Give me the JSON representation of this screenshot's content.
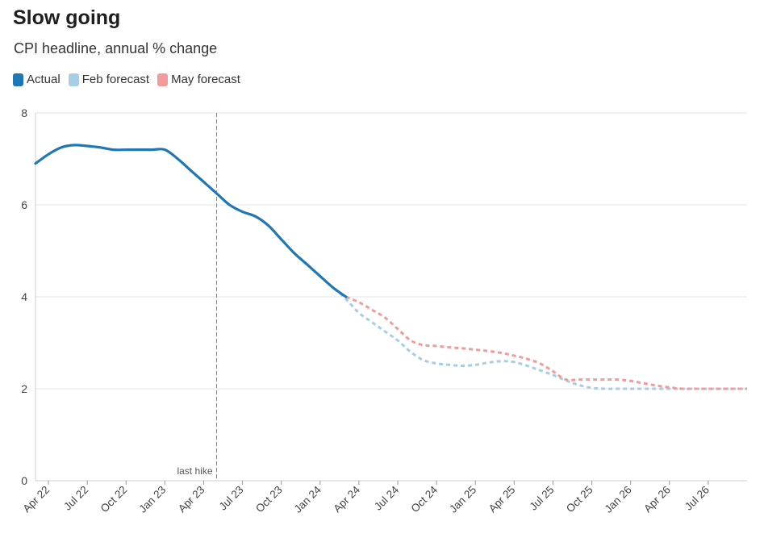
{
  "chart_data": {
    "type": "line",
    "title": "Slow going",
    "subtitle": "CPI headline, annual % change",
    "xlabel": "",
    "ylabel": "",
    "ylim": [
      0,
      8
    ],
    "yticks": [
      0,
      2,
      4,
      6,
      8
    ],
    "grid": true,
    "legend_position": "top-left",
    "x_range": [
      "2022-03",
      "2026-10"
    ],
    "x_ticks": [
      {
        "label": "Apr 22",
        "x": "2022-04"
      },
      {
        "label": "Jul 22",
        "x": "2022-07"
      },
      {
        "label": "Oct 22",
        "x": "2022-10"
      },
      {
        "label": "Jan 23",
        "x": "2023-01"
      },
      {
        "label": "Apr 23",
        "x": "2023-04"
      },
      {
        "label": "Jul 23",
        "x": "2023-07"
      },
      {
        "label": "Oct 23",
        "x": "2023-10"
      },
      {
        "label": "Jan 24",
        "x": "2024-01"
      },
      {
        "label": "Apr 24",
        "x": "2024-04"
      },
      {
        "label": "Jul 24",
        "x": "2024-07"
      },
      {
        "label": "Oct 24",
        "x": "2024-10"
      },
      {
        "label": "Jan 25",
        "x": "2025-01"
      },
      {
        "label": "Apr 25",
        "x": "2025-04"
      },
      {
        "label": "Jul 25",
        "x": "2025-07"
      },
      {
        "label": "Oct 25",
        "x": "2025-10"
      },
      {
        "label": "Jan 26",
        "x": "2026-01"
      },
      {
        "label": "Apr 26",
        "x": "2026-04"
      },
      {
        "label": "Jul 26",
        "x": "2026-07"
      }
    ],
    "annotations": [
      {
        "label": "last hike",
        "x": "2023-05"
      }
    ],
    "series": [
      {
        "name": "Actual",
        "color": "#1f77b4",
        "dashed": false,
        "points": [
          [
            "2022-03",
            6.9
          ],
          [
            "2022-04",
            7.1
          ],
          [
            "2022-05",
            7.25
          ],
          [
            "2022-06",
            7.3
          ],
          [
            "2022-07",
            7.28
          ],
          [
            "2022-08",
            7.25
          ],
          [
            "2022-09",
            7.2
          ],
          [
            "2022-10",
            7.2
          ],
          [
            "2022-11",
            7.2
          ],
          [
            "2022-12",
            7.2
          ],
          [
            "2023-01",
            7.2
          ],
          [
            "2023-02",
            7.0
          ],
          [
            "2023-03",
            6.75
          ],
          [
            "2023-04",
            6.5
          ],
          [
            "2023-05",
            6.25
          ],
          [
            "2023-06",
            6.0
          ],
          [
            "2023-07",
            5.85
          ],
          [
            "2023-08",
            5.75
          ],
          [
            "2023-09",
            5.55
          ],
          [
            "2023-10",
            5.25
          ],
          [
            "2023-11",
            4.95
          ],
          [
            "2023-12",
            4.7
          ],
          [
            "2024-01",
            4.45
          ],
          [
            "2024-02",
            4.2
          ],
          [
            "2024-03",
            4.0
          ]
        ]
      },
      {
        "name": "Feb forecast",
        "color": "#a6cfe5",
        "dashed": true,
        "points": [
          [
            "2023-12",
            4.7
          ],
          [
            "2024-01",
            4.45
          ],
          [
            "2024-02",
            4.2
          ],
          [
            "2024-03",
            3.95
          ],
          [
            "2024-04",
            3.65
          ],
          [
            "2024-05",
            3.45
          ],
          [
            "2024-06",
            3.25
          ],
          [
            "2024-07",
            3.05
          ],
          [
            "2024-08",
            2.8
          ],
          [
            "2024-09",
            2.62
          ],
          [
            "2024-10",
            2.55
          ],
          [
            "2024-11",
            2.52
          ],
          [
            "2024-12",
            2.5
          ],
          [
            "2025-01",
            2.52
          ],
          [
            "2025-02",
            2.57
          ],
          [
            "2025-03",
            2.6
          ],
          [
            "2025-04",
            2.58
          ],
          [
            "2025-05",
            2.5
          ],
          [
            "2025-06",
            2.4
          ],
          [
            "2025-07",
            2.3
          ],
          [
            "2025-08",
            2.18
          ],
          [
            "2025-09",
            2.08
          ],
          [
            "2025-10",
            2.02
          ],
          [
            "2025-11",
            2.0
          ],
          [
            "2025-12",
            2.0
          ],
          [
            "2026-01",
            2.0
          ],
          [
            "2026-02",
            2.0
          ],
          [
            "2026-03",
            2.0
          ],
          [
            "2026-04",
            2.0
          ],
          [
            "2026-05",
            2.0
          ],
          [
            "2026-06",
            2.0
          ],
          [
            "2026-07",
            2.0
          ],
          [
            "2026-08",
            2.0
          ],
          [
            "2026-09",
            2.0
          ],
          [
            "2026-10",
            2.0
          ]
        ]
      },
      {
        "name": "May forecast",
        "color": "#f39a9b",
        "dashed": true,
        "points": [
          [
            "2024-03",
            4.0
          ],
          [
            "2024-04",
            3.88
          ],
          [
            "2024-05",
            3.72
          ],
          [
            "2024-06",
            3.55
          ],
          [
            "2024-07",
            3.3
          ],
          [
            "2024-08",
            3.05
          ],
          [
            "2024-09",
            2.95
          ],
          [
            "2024-10",
            2.93
          ],
          [
            "2024-11",
            2.9
          ],
          [
            "2024-12",
            2.88
          ],
          [
            "2025-01",
            2.85
          ],
          [
            "2025-02",
            2.82
          ],
          [
            "2025-03",
            2.78
          ],
          [
            "2025-04",
            2.72
          ],
          [
            "2025-05",
            2.65
          ],
          [
            "2025-06",
            2.55
          ],
          [
            "2025-07",
            2.38
          ],
          [
            "2025-08",
            2.2
          ],
          [
            "2025-09",
            2.2
          ],
          [
            "2025-10",
            2.2
          ],
          [
            "2025-11",
            2.2
          ],
          [
            "2025-12",
            2.2
          ],
          [
            "2026-01",
            2.17
          ],
          [
            "2026-02",
            2.12
          ],
          [
            "2026-03",
            2.07
          ],
          [
            "2026-04",
            2.03
          ],
          [
            "2026-05",
            2.0
          ],
          [
            "2026-06",
            2.0
          ],
          [
            "2026-07",
            2.0
          ],
          [
            "2026-08",
            2.0
          ],
          [
            "2026-09",
            2.0
          ],
          [
            "2026-10",
            2.0
          ]
        ]
      }
    ]
  }
}
